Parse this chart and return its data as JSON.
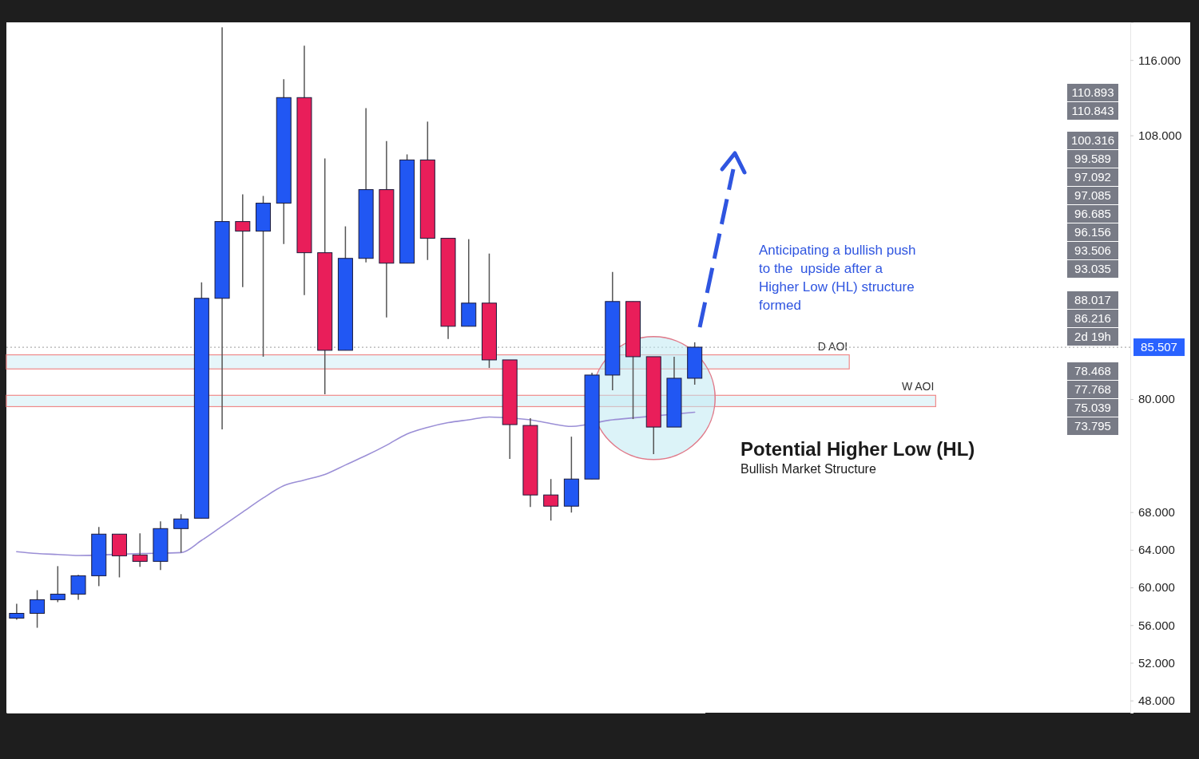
{
  "chart_data": {
    "type": "candlestick",
    "categories": [
      null,
      null,
      null,
      null,
      null,
      null,
      null,
      null,
      null,
      null,
      null,
      null,
      null,
      null,
      null,
      null,
      null,
      null,
      null,
      null,
      null,
      null,
      null,
      null,
      null,
      null,
      null,
      null,
      null,
      null,
      null,
      null,
      null,
      null
    ],
    "ohlc": [
      [
        56.74,
        58.27,
        56.57,
        57.25
      ],
      [
        57.25,
        59.71,
        55.72,
        58.7
      ],
      [
        58.7,
        62.26,
        58.44,
        59.29
      ],
      [
        59.29,
        61.33,
        58.7,
        61.24
      ],
      [
        61.24,
        66.42,
        60.14,
        65.66
      ],
      [
        65.66,
        65.66,
        61.07,
        63.36
      ],
      [
        63.45,
        65.74,
        62.18,
        62.77
      ],
      [
        62.77,
        67.02,
        61.84,
        66.25
      ],
      [
        66.25,
        67.78,
        63.7,
        67.27
      ],
      [
        67.35,
        92.4,
        67.35,
        90.7
      ],
      [
        90.7,
        119.48,
        76.78,
        98.85
      ],
      [
        98.85,
        101.73,
        91.89,
        97.83
      ],
      [
        97.83,
        101.57,
        84.5,
        100.8
      ],
      [
        100.8,
        113.96,
        96.47,
        112.01
      ],
      [
        112.01,
        117.52,
        91.04,
        95.54
      ],
      [
        95.54,
        105.56,
        80.51,
        85.18
      ],
      [
        85.18,
        98.34,
        85.18,
        94.94
      ],
      [
        94.94,
        110.9,
        94.52,
        102.24
      ],
      [
        102.24,
        107.4,
        88.66,
        94.43
      ],
      [
        94.43,
        105.98,
        94.43,
        105.39
      ],
      [
        105.39,
        109.46,
        94.77,
        97.07
      ],
      [
        97.07,
        97.07,
        86.37,
        87.73
      ],
      [
        87.73,
        96.98,
        87.73,
        90.19
      ],
      [
        90.19,
        95.45,
        83.31,
        84.16
      ],
      [
        84.16,
        84.16,
        73.64,
        77.29
      ],
      [
        77.2,
        77.97,
        68.54,
        69.82
      ],
      [
        69.82,
        71.51,
        67.1,
        68.63
      ],
      [
        68.63,
        76.01,
        67.95,
        71.51
      ],
      [
        71.51,
        82.8,
        71.51,
        82.55
      ],
      [
        82.55,
        93.5,
        80.94,
        90.36
      ],
      [
        90.36,
        90.36,
        77.88,
        84.5
      ],
      [
        84.5,
        84.5,
        74.15,
        77.03
      ],
      [
        77.03,
        84.5,
        77.03,
        82.21
      ],
      [
        82.21,
        86.03,
        81.53,
        85.51
      ]
    ],
    "colors": [
      "#2157f3",
      "#2157f3",
      "#2157f3",
      "#2157f3",
      "#2157f3",
      "#e91e5a",
      "#e91e5a",
      "#2157f3",
      "#2157f3",
      "#2157f3",
      "#2157f3",
      "#e91e5a",
      "#2157f3",
      "#2157f3",
      "#e91e5a",
      "#e91e5a",
      "#2157f3",
      "#2157f3",
      "#e91e5a",
      "#2157f3",
      "#e91e5a",
      "#e91e5a",
      "#2157f3",
      "#e91e5a",
      "#e91e5a",
      "#e91e5a",
      "#e91e5a",
      "#2157f3",
      "#2157f3",
      "#2157f3",
      "#e91e5a",
      "#e91e5a",
      "#2157f3",
      "#2157f3"
    ],
    "series": [
      {
        "type": "line",
        "color": "#9b8fd6",
        "values": [
          63.8,
          63.6,
          63.5,
          63.4,
          null,
          null,
          63.6,
          null,
          63.7,
          65.0,
          66.5,
          68.0,
          69.5,
          70.8,
          71.4,
          72.0,
          73.0,
          74.0,
          75.1,
          76.3,
          77.0,
          77.5,
          77.8,
          78.1,
          null,
          77.8,
          77.4,
          77.1,
          null,
          77.8,
          78.0,
          null,
          null,
          78.6
        ]
      }
    ],
    "bands": [
      {
        "axis": "y",
        "from": 83.2,
        "to": 84.7,
        "label": "D AOI",
        "color": "#e6f6fa"
      },
      {
        "axis": "y",
        "from": 79.2,
        "to": 80.4,
        "label": "W AOI",
        "color": "#e6f6fa"
      }
    ],
    "ref_lines": [
      {
        "axis": "y",
        "value": 85.507,
        "label": "85.507",
        "color": "#b0b0b0",
        "line_style": "dotted"
      }
    ],
    "annotations": [
      "Anticipating a bullish push to the  upside after a Higher Low (HL) structure formed",
      "Potential Higher Low (HL)",
      "Bullish Market Structure",
      "110.893",
      "110.843",
      "100.316",
      "99.589",
      "97.092",
      "97.085",
      "96.685",
      "96.156",
      "93.506",
      "93.035",
      "88.017",
      "86.216",
      "2d 19h",
      "78.468",
      "77.768",
      "75.039",
      "73.795"
    ],
    "ylim": [
      46.7,
      120
    ],
    "yticks": [
      {
        "value": 48,
        "label": "48.000"
      },
      {
        "value": 52,
        "label": "52.000"
      },
      {
        "value": 56,
        "label": "56.000"
      },
      {
        "value": 60,
        "label": "60.000"
      },
      {
        "value": 64,
        "label": "64.000"
      },
      {
        "value": 68,
        "label": "68.000"
      },
      {
        "value": 80,
        "label": "80.000"
      },
      {
        "value": 108,
        "label": "108.000"
      },
      {
        "value": 116,
        "label": "116.000"
      }
    ],
    "tick_labels": "y"
  }
}
